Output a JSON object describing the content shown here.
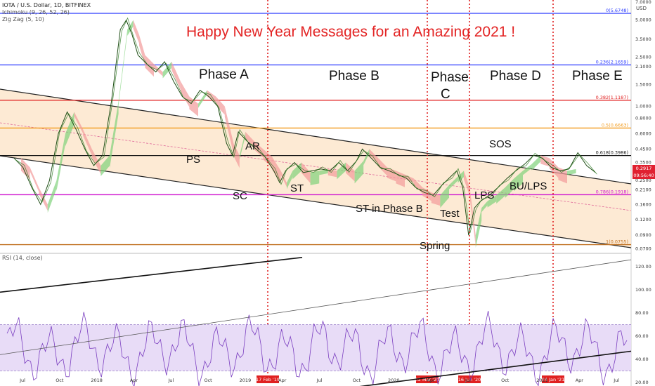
{
  "symbol_line": "IOTA / U.S. Dollar, 1D, BITFINEX",
  "indicators": [
    "Ichimoku (9, 26, 52, 26)",
    "Zig Zag (5, 10)"
  ],
  "rsi_label": "RSI (14, close)",
  "currency": "USD",
  "title": "Happy New Year Messages for an Amazing 2021 !",
  "price_badge": {
    "price": "0.2917",
    "time": "09:56:40"
  },
  "chart_data": {
    "type": "line",
    "price_axis": {
      "scale": "log",
      "ticks": [
        "7.0000",
        "5.0000",
        "3.5000",
        "2.5000",
        "2.1000",
        "1.5000",
        "1.0000",
        "0.8000",
        "0.6000",
        "0.4500",
        "0.3500",
        "0.2500",
        "0.2100",
        "0.1600",
        "0.1200",
        "0.0900",
        "0.0700"
      ]
    },
    "rsi_axis": {
      "ticks": [
        "120.00",
        "100.00",
        "80.00",
        "60.00",
        "40.00",
        "20.00"
      ],
      "band": [
        30,
        70
      ]
    },
    "x_ticks": [
      "Jul",
      "Oct",
      "2018",
      "Apr",
      "Jul",
      "Oct",
      "2019",
      "Apr",
      "Jul",
      "Oct",
      "2020",
      "Apr",
      "Jul",
      "Oct",
      "2021",
      "Apr",
      "Jul"
    ],
    "date_markers": [
      "17 Feb '19",
      "02 Mar '20",
      "16 Jun '20",
      "04 Jan '21"
    ],
    "fib_levels": [
      {
        "label": "0(5.6748)",
        "price": 5.6748,
        "color": "#2c3cff"
      },
      {
        "label": "0.236(2.1659)",
        "price": 2.1659,
        "color": "#2c3cff"
      },
      {
        "label": "0.382(1.1187)",
        "price": 1.1187,
        "color": "#e02020"
      },
      {
        "label": "0.5(0.6663)",
        "price": 0.6663,
        "color": "#f29a1a"
      },
      {
        "label": "0.618(0.3986)",
        "price": 0.3986,
        "color": "#111111"
      },
      {
        "label": "0.786(0.1918)",
        "price": 0.1918,
        "color": "#d01ad0"
      },
      {
        "label": "1(0.0755)",
        "price": 0.0755,
        "color": "#c07020"
      }
    ],
    "price_series": [
      [
        0,
        0.38
      ],
      [
        3,
        0.32
      ],
      [
        6,
        0.22
      ],
      [
        9,
        0.16
      ],
      [
        12,
        0.25
      ],
      [
        15,
        0.6
      ],
      [
        18,
        0.9
      ],
      [
        21,
        0.65
      ],
      [
        24,
        0.45
      ],
      [
        27,
        0.33
      ],
      [
        30,
        0.4
      ],
      [
        33,
        1.1
      ],
      [
        36,
        4.2
      ],
      [
        38,
        5.0
      ],
      [
        40,
        3.8
      ],
      [
        42,
        2.6
      ],
      [
        45,
        2.2
      ],
      [
        48,
        1.9
      ],
      [
        51,
        2.3
      ],
      [
        54,
        1.6
      ],
      [
        57,
        1.2
      ],
      [
        60,
        1.05
      ],
      [
        63,
        1.35
      ],
      [
        66,
        1.2
      ],
      [
        69,
        1.0
      ],
      [
        72,
        0.5
      ],
      [
        74,
        0.4
      ],
      [
        76,
        0.62
      ],
      [
        79,
        0.52
      ],
      [
        82,
        0.45
      ],
      [
        85,
        0.39
      ],
      [
        88,
        0.3
      ],
      [
        90,
        0.24
      ],
      [
        92,
        0.3
      ],
      [
        95,
        0.35
      ],
      [
        98,
        0.29
      ],
      [
        101,
        0.3
      ],
      [
        104,
        0.31
      ],
      [
        107,
        0.3
      ],
      [
        110,
        0.35
      ],
      [
        113,
        0.3
      ],
      [
        116,
        0.36
      ],
      [
        118,
        0.45
      ],
      [
        121,
        0.38
      ],
      [
        124,
        0.32
      ],
      [
        127,
        0.3
      ],
      [
        130,
        0.28
      ],
      [
        133,
        0.26
      ],
      [
        136,
        0.22
      ],
      [
        139,
        0.2
      ],
      [
        142,
        0.19
      ],
      [
        145,
        0.23
      ],
      [
        148,
        0.27
      ],
      [
        150,
        0.3
      ],
      [
        152,
        0.22
      ],
      [
        154,
        0.09
      ],
      [
        156,
        0.15
      ],
      [
        158,
        0.17
      ],
      [
        161,
        0.19
      ],
      [
        164,
        0.22
      ],
      [
        167,
        0.26
      ],
      [
        170,
        0.3
      ],
      [
        173,
        0.34
      ],
      [
        176,
        0.4
      ],
      [
        179,
        0.38
      ],
      [
        182,
        0.32
      ],
      [
        185,
        0.3
      ],
      [
        188,
        0.31
      ],
      [
        191,
        0.42
      ],
      [
        194,
        0.33
      ],
      [
        197,
        0.29
      ]
    ]
  },
  "phases": [
    "Phase A",
    "Phase B",
    "Phase",
    "C",
    "Phase D",
    "Phase E"
  ],
  "wyckoff": [
    "PS",
    "SC",
    "AR",
    "ST",
    "ST in Phase B",
    "Spring",
    "Test",
    "LPS",
    "SOS",
    "BU/LPS"
  ]
}
